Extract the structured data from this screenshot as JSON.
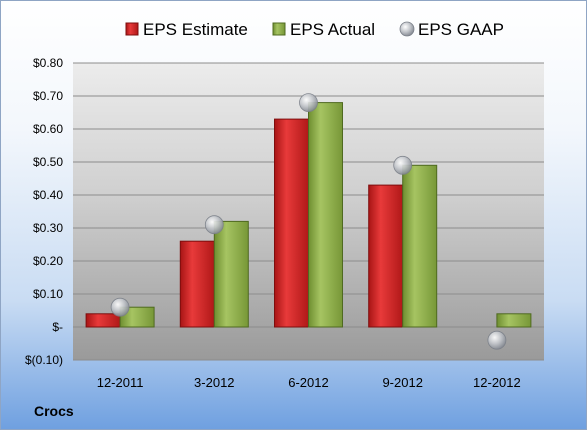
{
  "company": "Crocs",
  "chart_data": {
    "type": "bar",
    "categories": [
      "12-2011",
      "3-2012",
      "6-2012",
      "9-2012",
      "12-2012"
    ],
    "series": [
      {
        "name": "EPS Estimate",
        "kind": "bar",
        "color": "#cc1f1f",
        "values": [
          0.04,
          0.26,
          0.63,
          0.43,
          null
        ]
      },
      {
        "name": "EPS Actual",
        "kind": "bar",
        "color": "#8aab45",
        "values": [
          0.06,
          0.32,
          0.68,
          0.49,
          0.04
        ]
      },
      {
        "name": "EPS GAAP",
        "kind": "marker",
        "color": "#b8bcc4",
        "values": [
          0.06,
          0.31,
          0.68,
          0.49,
          -0.04
        ]
      }
    ],
    "y_ticks": [
      "$0.80",
      "$0.70",
      "$0.60",
      "$0.50",
      "$0.40",
      "$0.30",
      "$0.20",
      "$0.10",
      "$-",
      "$(0.10)"
    ],
    "ylim": [
      -0.1,
      0.8
    ],
    "ystep": 0.1,
    "grid": true,
    "legend_position": "top"
  }
}
